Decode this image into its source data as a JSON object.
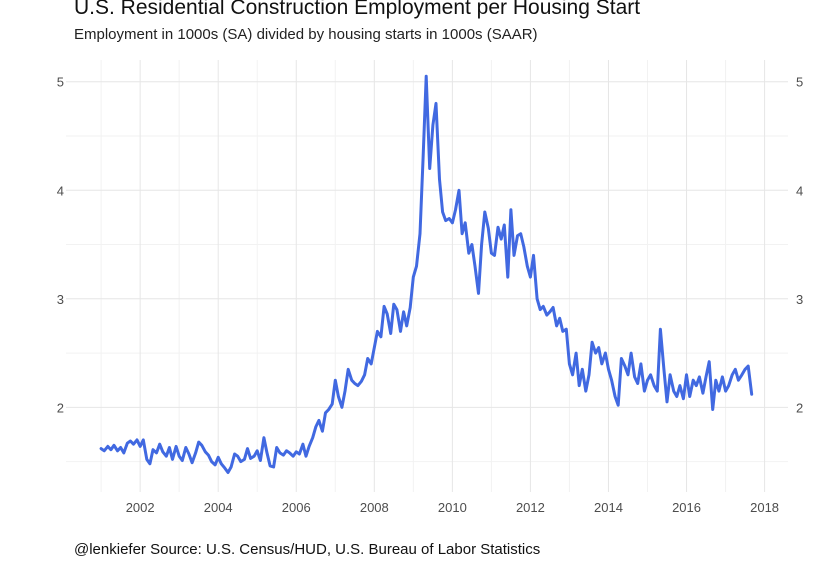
{
  "chart_data": {
    "type": "line",
    "title": "U.S. Residential Construction Employment per Housing Start",
    "subtitle": "Employment in 1000s (SA) divided by housing starts in 1000s (SAAR)",
    "caption": "@lenkiefer Source: U.S. Census/HUD, U.S. Bureau of Labor Statistics",
    "xlabel": "",
    "ylabel": "",
    "xlim": [
      2000.1,
      2018.6
    ],
    "ylim": [
      1.22,
      5.2
    ],
    "x_ticks": [
      2002,
      2004,
      2006,
      2008,
      2010,
      2012,
      2014,
      2016,
      2018
    ],
    "x_tick_labels": [
      "2002",
      "2004",
      "2006",
      "2008",
      "2010",
      "2012",
      "2014",
      "2016",
      "2018"
    ],
    "y_ticks": [
      2,
      3,
      4,
      5
    ],
    "y_tick_labels": [
      "2",
      "3",
      "4",
      "5"
    ],
    "y_axis_right_duplicate": true,
    "grid": true,
    "line_color": "#4169e1",
    "series": [
      {
        "x": [
          2001.0,
          2001.08,
          2001.17,
          2001.25,
          2001.33,
          2001.42,
          2001.5,
          2001.58,
          2001.67,
          2001.75,
          2001.83,
          2001.92,
          2002.0,
          2002.08,
          2002.17,
          2002.25,
          2002.33,
          2002.42,
          2002.5,
          2002.58,
          2002.67,
          2002.75,
          2002.83,
          2002.92,
          2003.0,
          2003.08,
          2003.17,
          2003.25,
          2003.33,
          2003.42,
          2003.5,
          2003.58,
          2003.67,
          2003.75,
          2003.83,
          2003.92,
          2004.0,
          2004.08,
          2004.17,
          2004.25,
          2004.33,
          2004.42,
          2004.5,
          2004.58,
          2004.67,
          2004.75,
          2004.83,
          2004.92,
          2005.0,
          2005.08,
          2005.17,
          2005.25,
          2005.33,
          2005.42,
          2005.5,
          2005.58,
          2005.67,
          2005.75,
          2005.83,
          2005.92,
          2006.0,
          2006.08,
          2006.17,
          2006.25,
          2006.33,
          2006.42,
          2006.5,
          2006.58,
          2006.67,
          2006.75,
          2006.83,
          2006.92,
          2007.0,
          2007.08,
          2007.17,
          2007.25,
          2007.33,
          2007.42,
          2007.5,
          2007.58,
          2007.67,
          2007.75,
          2007.83,
          2007.92,
          2008.0,
          2008.08,
          2008.17,
          2008.25,
          2008.33,
          2008.42,
          2008.5,
          2008.58,
          2008.67,
          2008.75,
          2008.83,
          2008.92,
          2009.0,
          2009.08,
          2009.17,
          2009.25,
          2009.33,
          2009.42,
          2009.5,
          2009.58,
          2009.67,
          2009.75,
          2009.83,
          2009.92,
          2010.0,
          2010.08,
          2010.17,
          2010.25,
          2010.33,
          2010.42,
          2010.5,
          2010.58,
          2010.67,
          2010.75,
          2010.83,
          2010.92,
          2011.0,
          2011.08,
          2011.17,
          2011.25,
          2011.33,
          2011.42,
          2011.5,
          2011.58,
          2011.67,
          2011.75,
          2011.83,
          2011.92,
          2012.0,
          2012.08,
          2012.17,
          2012.25,
          2012.33,
          2012.42,
          2012.5,
          2012.58,
          2012.67,
          2012.75,
          2012.83,
          2012.92,
          2013.0,
          2013.08,
          2013.17,
          2013.25,
          2013.33,
          2013.42,
          2013.5,
          2013.58,
          2013.67,
          2013.75,
          2013.83,
          2013.92,
          2014.0,
          2014.08,
          2014.17,
          2014.25,
          2014.33,
          2014.42,
          2014.5,
          2014.58,
          2014.67,
          2014.75,
          2014.83,
          2014.92,
          2015.0,
          2015.08,
          2015.17,
          2015.25,
          2015.33,
          2015.42,
          2015.5,
          2015.58,
          2015.67,
          2015.75,
          2015.83,
          2015.92,
          2016.0,
          2016.08,
          2016.17,
          2016.25,
          2016.33,
          2016.42,
          2016.5,
          2016.58,
          2016.67,
          2016.75,
          2016.83,
          2016.92,
          2017.0,
          2017.08,
          2017.17,
          2017.25,
          2017.33,
          2017.42,
          2017.5,
          2017.58,
          2017.67
        ],
        "y": [
          1.62,
          1.6,
          1.64,
          1.61,
          1.65,
          1.6,
          1.63,
          1.58,
          1.67,
          1.69,
          1.66,
          1.7,
          1.64,
          1.7,
          1.52,
          1.48,
          1.61,
          1.58,
          1.66,
          1.59,
          1.55,
          1.63,
          1.52,
          1.64,
          1.55,
          1.51,
          1.63,
          1.57,
          1.49,
          1.58,
          1.68,
          1.65,
          1.59,
          1.56,
          1.5,
          1.47,
          1.54,
          1.48,
          1.44,
          1.4,
          1.45,
          1.57,
          1.55,
          1.5,
          1.52,
          1.62,
          1.53,
          1.55,
          1.6,
          1.51,
          1.72,
          1.58,
          1.46,
          1.45,
          1.63,
          1.58,
          1.56,
          1.6,
          1.58,
          1.55,
          1.59,
          1.57,
          1.66,
          1.55,
          1.64,
          1.72,
          1.82,
          1.88,
          1.78,
          1.95,
          1.98,
          2.03,
          2.25,
          2.1,
          2.0,
          2.15,
          2.35,
          2.25,
          2.22,
          2.2,
          2.24,
          2.3,
          2.45,
          2.4,
          2.55,
          2.7,
          2.65,
          2.93,
          2.86,
          2.68,
          2.95,
          2.9,
          2.7,
          2.88,
          2.75,
          2.92,
          3.2,
          3.3,
          3.6,
          4.3,
          5.05,
          4.2,
          4.6,
          4.8,
          4.1,
          3.8,
          3.72,
          3.74,
          3.7,
          3.82,
          4.0,
          3.6,
          3.7,
          3.42,
          3.5,
          3.3,
          3.05,
          3.5,
          3.8,
          3.65,
          3.42,
          3.4,
          3.66,
          3.55,
          3.68,
          3.2,
          3.82,
          3.4,
          3.58,
          3.6,
          3.48,
          3.3,
          3.2,
          3.4,
          3.0,
          2.9,
          2.93,
          2.85,
          2.88,
          2.92,
          2.75,
          2.82,
          2.7,
          2.72,
          2.4,
          2.3,
          2.5,
          2.2,
          2.35,
          2.15,
          2.3,
          2.6,
          2.5,
          2.55,
          2.4,
          2.5,
          2.35,
          2.25,
          2.1,
          2.02,
          2.45,
          2.38,
          2.3,
          2.5,
          2.28,
          2.22,
          2.4,
          2.15,
          2.25,
          2.3,
          2.2,
          2.15,
          2.72,
          2.35,
          2.05,
          2.3,
          2.15,
          2.1,
          2.2,
          2.08,
          2.3,
          2.1,
          2.25,
          2.2,
          2.28,
          2.13,
          2.28,
          2.42,
          1.98,
          2.25,
          2.15,
          2.28,
          2.15,
          2.2,
          2.3,
          2.35,
          2.25,
          2.3,
          2.35,
          2.38,
          2.12
        ]
      }
    ]
  }
}
